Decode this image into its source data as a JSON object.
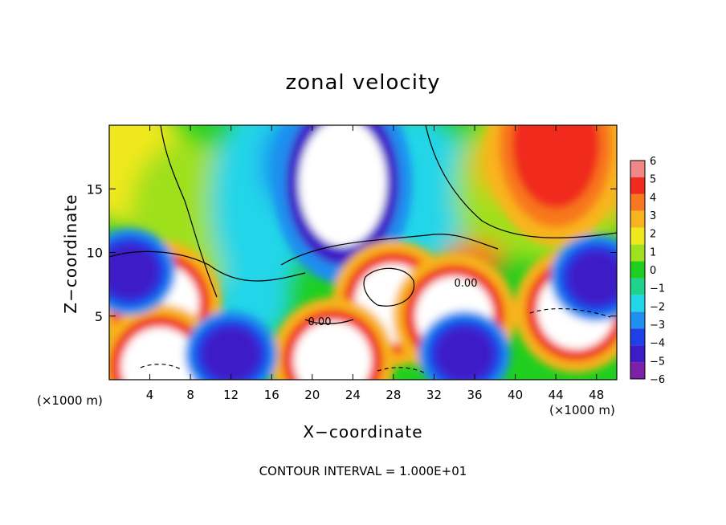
{
  "chart_data": {
    "type": "heatmap",
    "title": "zonal velocity",
    "xlabel": "X−coordinate",
    "ylabel": "Z−coordinate",
    "x_unit_label": "(×1000 m)",
    "x_unit_label_right": "(×1000 m)",
    "footer": "CONTOUR INTERVAL = 1.000E+01",
    "xlim": [
      0,
      50
    ],
    "ylim": [
      0,
      20
    ],
    "xticks": [
      4,
      8,
      12,
      16,
      20,
      24,
      28,
      32,
      36,
      40,
      44,
      48
    ],
    "yticks": [
      5,
      10,
      15
    ],
    "colorbar": {
      "levels": [
        -6,
        -5,
        -4,
        -3,
        -2,
        -1,
        0,
        1,
        2,
        3,
        4,
        5,
        6
      ],
      "labels": [
        "6",
        "5",
        "4",
        "3",
        "2",
        "1",
        "0",
        "−1",
        "−2",
        "−3",
        "−4",
        "−5",
        "−6"
      ],
      "colors": [
        "#7e1fa8",
        "#3c1cc8",
        "#1f3fe8",
        "#1f8ff0",
        "#23d5e8",
        "#1fd48a",
        "#1fcf1f",
        "#9fe01f",
        "#f0e81f",
        "#f8b41f",
        "#f8781f",
        "#f02a1f",
        "#f08888"
      ]
    },
    "contour_labels": [
      "0.00",
      "0.00"
    ],
    "features": [
      {
        "kind": "jet-max",
        "x": 44,
        "z": 18.5,
        "value": 5
      },
      {
        "kind": "jet-min",
        "x": 23,
        "z": 15.5,
        "value": -7
      },
      {
        "kind": "cell-max",
        "x": 5,
        "z": 6,
        "value": 7
      },
      {
        "kind": "cell-max",
        "x": 28,
        "z": 6,
        "value": 7
      },
      {
        "kind": "cell-max",
        "x": 46,
        "z": 5.5,
        "value": 7
      },
      {
        "kind": "cell-max",
        "x": 34,
        "z": 5,
        "value": 7
      },
      {
        "kind": "cell-max",
        "x": 22,
        "z": 1.5,
        "value": 7
      },
      {
        "kind": "cell-max",
        "x": 5,
        "z": 1,
        "value": 7
      },
      {
        "kind": "cell-min",
        "x": 12,
        "z": 2,
        "value": -5
      },
      {
        "kind": "cell-min",
        "x": 35,
        "z": 2,
        "value": -5
      },
      {
        "kind": "cell-min",
        "x": 2,
        "z": 8.5,
        "value": -5
      },
      {
        "kind": "cell-min",
        "x": 48,
        "z": 8,
        "value": -5
      }
    ]
  }
}
